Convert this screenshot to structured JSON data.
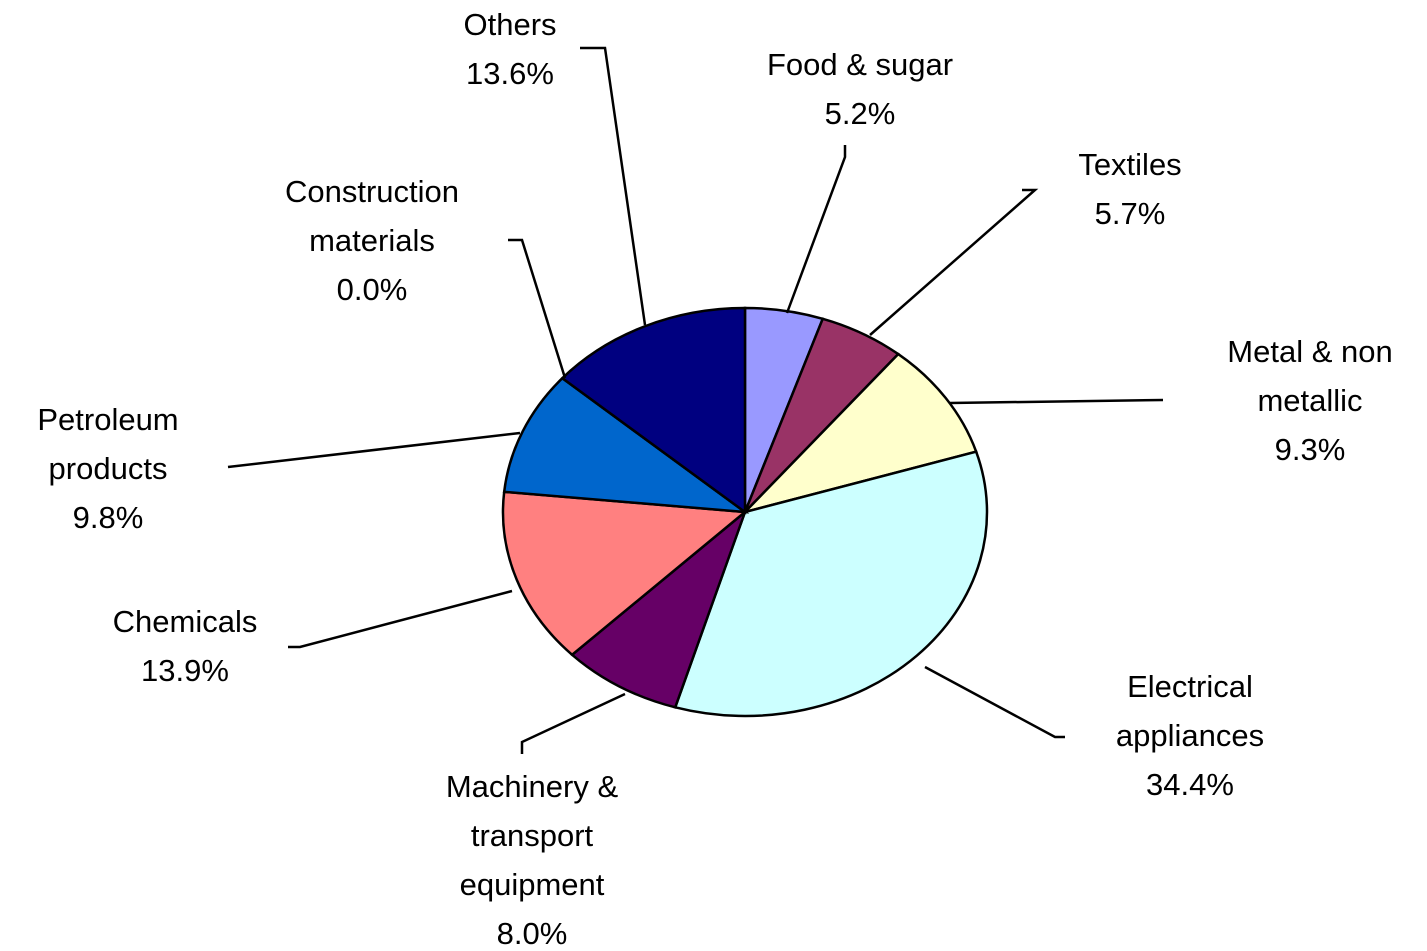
{
  "chart_data": {
    "type": "pie",
    "categories": [
      "Food & sugar",
      "Textiles",
      "Metal & non metallic",
      "Electrical appliances",
      "Machinery & transport equipment",
      "Chemicals",
      "Petroleum products",
      "Construction materials",
      "Others"
    ],
    "values": [
      5.2,
      5.7,
      9.3,
      34.4,
      8.0,
      13.9,
      9.8,
      0.0,
      13.6
    ],
    "value_labels": [
      "5.2%",
      "5.7%",
      "9.3%",
      "34.4%",
      "8.0%",
      "13.9%",
      "9.8%",
      "0.0%",
      "13.6%"
    ],
    "colors": [
      "#9999ff",
      "#993366",
      "#ffffcc",
      "#ccffff",
      "#660066",
      "#ff8080",
      "#0066cc",
      "#ccccff",
      "#000080"
    ]
  }
}
